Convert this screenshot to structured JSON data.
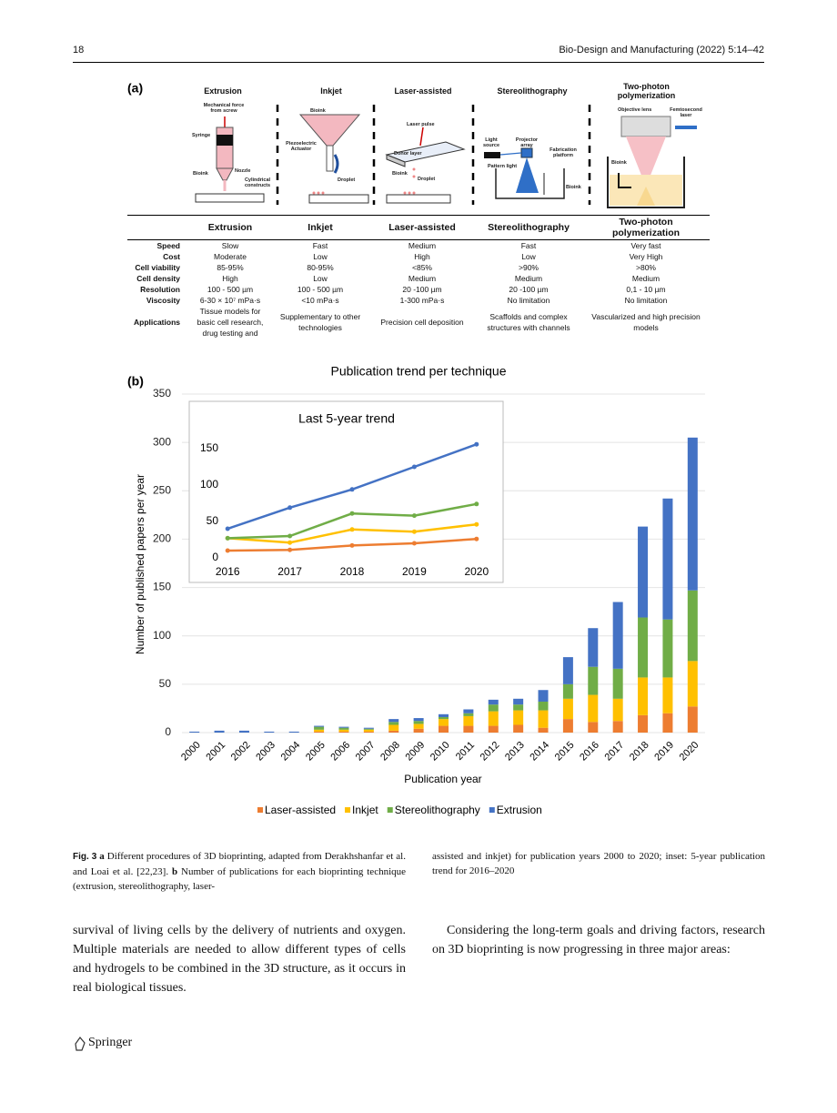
{
  "header": {
    "page_number": "18",
    "journal": "Bio-Design and Manufacturing (2022) 5:14–42"
  },
  "panel_a": {
    "label": "(a)",
    "columns": [
      {
        "title": "Extrusion",
        "labels": [
          "Mechanical force from screw",
          "Syringe",
          "Bioink",
          "Nozzle",
          "Cylindrical constructs"
        ]
      },
      {
        "title": "Inkjet",
        "labels": [
          "Bioink",
          "Piezoelectric Actuator",
          "Droplet"
        ]
      },
      {
        "title": "Laser-assisted",
        "labels": [
          "Laser pulse",
          "Donor layer",
          "Bioink",
          "Droplet"
        ]
      },
      {
        "title": "Stereolithography",
        "labels": [
          "Light source",
          "Projector array",
          "Fabrication platform",
          "Pattern light",
          "Bioink"
        ]
      },
      {
        "title": "Two-photon polymerization",
        "labels": [
          "Objective lens",
          "Femtosecond laser",
          "Bioink"
        ]
      }
    ]
  },
  "table": {
    "header": [
      "Extrusion",
      "Inkjet",
      "Laser-assisted",
      "Stereolithography",
      "Two-photon polymerization"
    ],
    "rows": [
      [
        "Speed",
        "Slow",
        "Fast",
        "Medium",
        "Fast",
        "Very fast"
      ],
      [
        "Cost",
        "Moderate",
        "Low",
        "High",
        "Low",
        "Very High"
      ],
      [
        "Cell viability",
        "85-95%",
        "80-95%",
        "<85%",
        ">90%",
        ">80%"
      ],
      [
        "Cell density",
        "High",
        "Low",
        "Medium",
        "Medium",
        "Medium"
      ],
      [
        "Resolution",
        "100 - 500 µm",
        "100 - 500 µm",
        "20 -100 µm",
        "20 -100 µm",
        "0,1 - 10 µm"
      ],
      [
        "Viscosity",
        "6-30 × 10⁷ mPa·s",
        "<10 mPa·s",
        "1-300 mPa·s",
        "No limitation",
        "No limitation"
      ],
      [
        "Applications",
        "Tissue models for basic cell research, drug testing and",
        "Supplementary to other technologies",
        "Precision cell deposition",
        "Scaffolds and complex structures with channels",
        "Vascularized and high precision models"
      ]
    ]
  },
  "panel_b": {
    "label": "(b)"
  },
  "chart_data": [
    {
      "type": "bar",
      "stacked": true,
      "title": "Publication trend per technique",
      "xlabel": "Publication year",
      "ylabel": "Number of published papers per year",
      "categories": [
        "2000",
        "2001",
        "2002",
        "2003",
        "2004",
        "2005",
        "2006",
        "2007",
        "2008",
        "2009",
        "2010",
        "2011",
        "2012",
        "2013",
        "2014",
        "2015",
        "2016",
        "2017",
        "2018",
        "2019",
        "2020"
      ],
      "series": [
        {
          "name": "Laser-assisted",
          "color": "#ed7d31",
          "values": [
            0,
            0,
            0,
            0,
            0,
            1,
            1,
            1,
            2,
            4,
            7,
            7,
            7,
            8,
            5,
            14,
            11,
            12,
            18,
            20,
            27
          ]
        },
        {
          "name": "Inkjet",
          "color": "#ffc000",
          "values": [
            0,
            0,
            0,
            0,
            0,
            2,
            2,
            2,
            6,
            5,
            7,
            10,
            15,
            15,
            18,
            21,
            28,
            23,
            39,
            37,
            47
          ]
        },
        {
          "name": "Stereolithography",
          "color": "#70ad47",
          "values": [
            0,
            0,
            0,
            0,
            0,
            3,
            2,
            1,
            3,
            3,
            2,
            3,
            7,
            6,
            9,
            15,
            29,
            31,
            62,
            60,
            73
          ]
        },
        {
          "name": "Extrusion",
          "color": "#4472c4",
          "values": [
            1,
            2,
            2,
            1,
            1,
            1,
            1,
            1,
            3,
            3,
            3,
            4,
            5,
            6,
            12,
            28,
            40,
            69,
            94,
            125,
            158
          ]
        }
      ],
      "ylim": [
        0,
        350
      ],
      "yticks": [
        0,
        50,
        100,
        150,
        200,
        250,
        300,
        350
      ],
      "grid": true,
      "legend": "bottom"
    },
    {
      "type": "line",
      "title": "Last 5-year trend",
      "categories": [
        "2016",
        "2017",
        "2018",
        "2019",
        "2020"
      ],
      "series": [
        {
          "color": "#ed7d31",
          "values": [
            10,
            11,
            17,
            20,
            26
          ]
        },
        {
          "color": "#ffc000",
          "values": [
            27,
            21,
            39,
            36,
            46
          ]
        },
        {
          "color": "#70ad47",
          "values": [
            27,
            30,
            61,
            58,
            74
          ]
        },
        {
          "color": "#4472c4",
          "values": [
            40,
            69,
            94,
            125,
            156
          ]
        }
      ],
      "ylim": [
        0,
        170
      ],
      "yticks": [
        0,
        50,
        100,
        150
      ],
      "grid": false
    }
  ],
  "caption": {
    "label": "Fig. 3",
    "a": "a",
    "text_a": "Different procedures of 3D bioprinting, adapted from Derakhshanfar et al. and Loai et al. [22,23].",
    "b": "b",
    "text_b_1": "Number of publications for each bioprinting technique (extrusion, stereolithography, laser-",
    "text_b_2": "assisted and inkjet) for publication years 2000 to 2020; inset: 5-year publication trend for 2016–2020"
  },
  "body": {
    "left": "survival of living cells by the delivery of nutrients and oxygen. Multiple materials are needed to allow different types of cells and hydrogels to be combined in the 3D structure, as it occurs in real biological tissues.",
    "right": "Considering the long-term goals and driving factors, research on 3D bioprinting is now progressing in three major areas:"
  },
  "footer": {
    "publisher": "Springer"
  }
}
